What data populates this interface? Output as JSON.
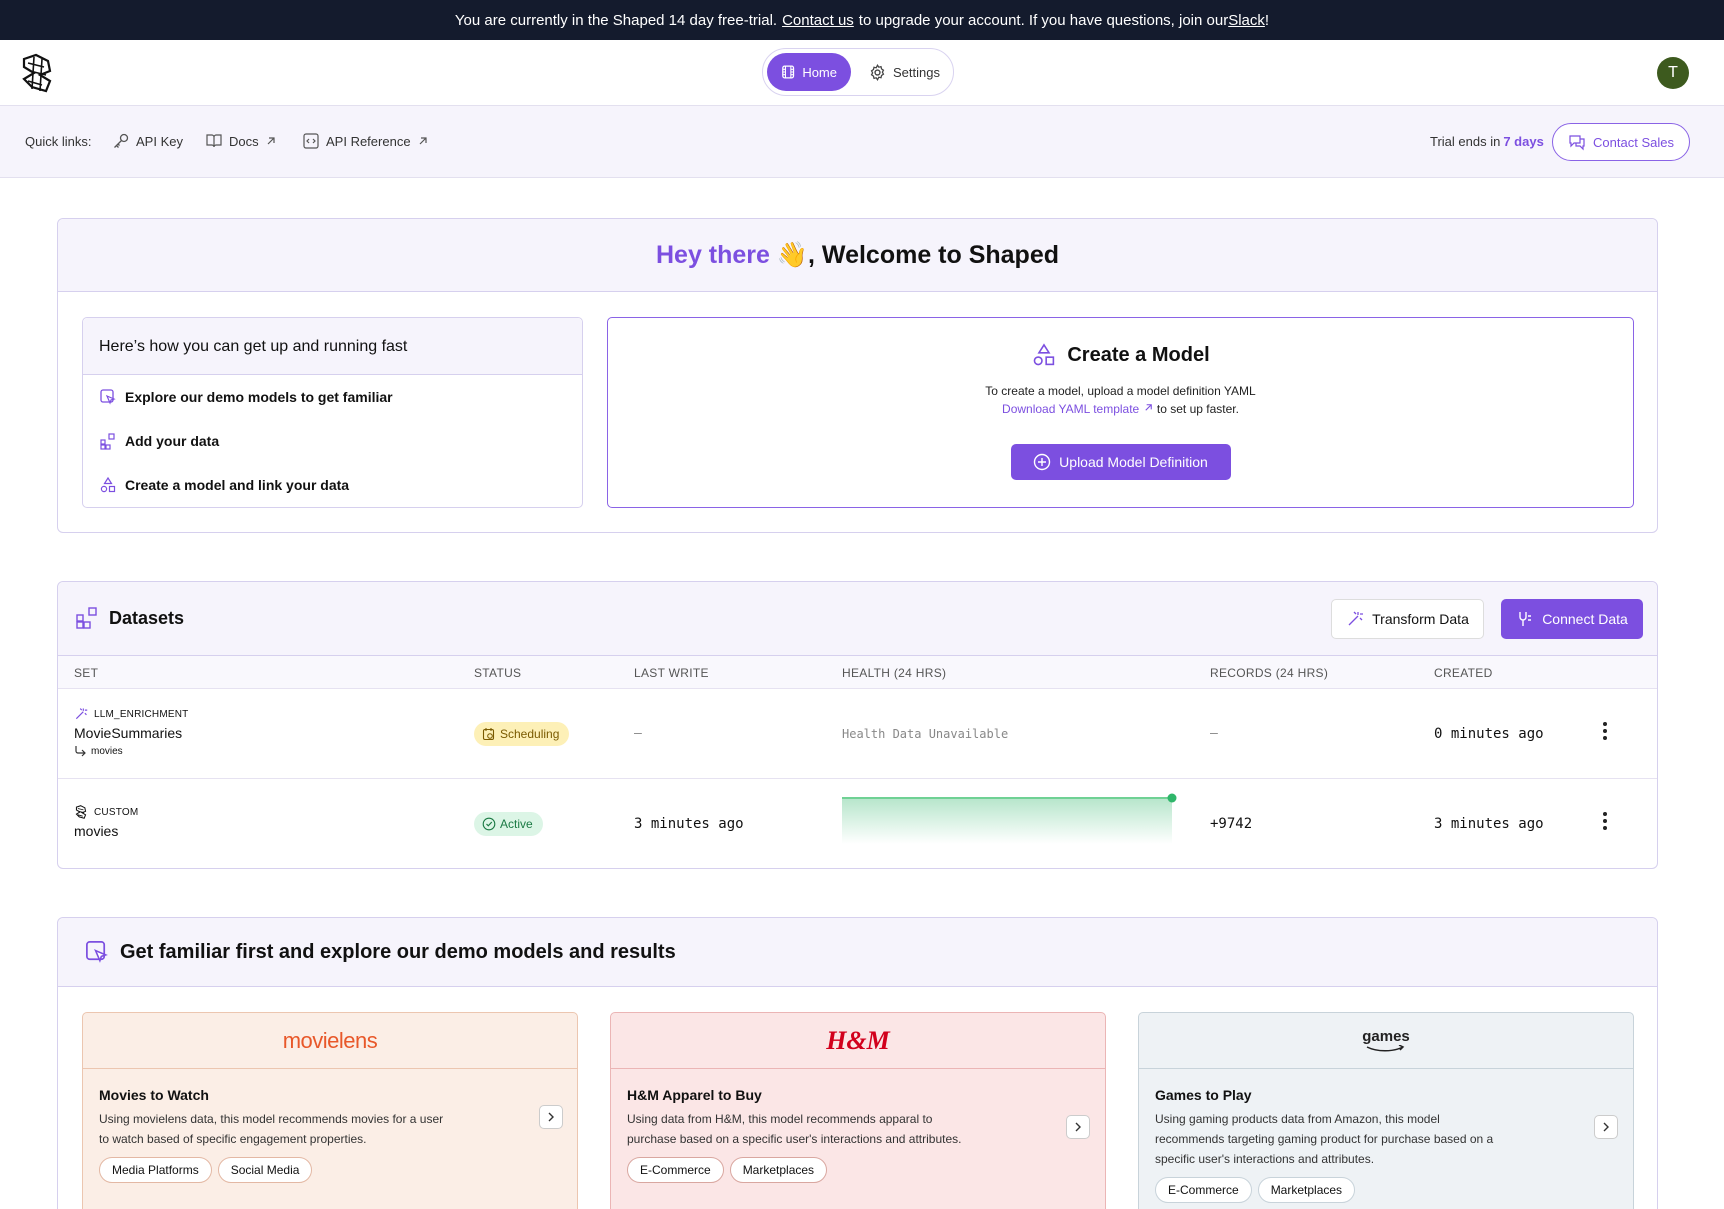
{
  "banner": {
    "text_before": "You are currently in the Shaped 14 day free-trial.",
    "contact_link": "Contact us",
    "text_middle": "to upgrade your account. If you have questions, join our",
    "slack_link": "Slack",
    "text_end": "!"
  },
  "nav": {
    "home_label": "Home",
    "settings_label": "Settings",
    "avatar_initial": "T"
  },
  "quicklinks": {
    "label": "Quick links:",
    "api_key": "API Key",
    "docs": "Docs",
    "api_reference": "API Reference",
    "trial_prefix": "Trial ends in",
    "trial_days": "7 days",
    "contact_sales": "Contact Sales"
  },
  "welcome": {
    "hey": "Hey there",
    "wave": "👋",
    "rest": ", Welcome to Shaped",
    "steps_title": "Here’s how you can get up and running fast",
    "steps": [
      "Explore our demo models to get familiar",
      "Add your data",
      "Create a model and link your data"
    ],
    "create_title": "Create a Model",
    "create_desc": "To create a model, upload a model definition YAML",
    "download_link": "Download YAML template",
    "download_suffix": "to set up faster.",
    "upload_button": "Upload Model Definition"
  },
  "datasets": {
    "title": "Datasets",
    "transform_button": "Transform Data",
    "connect_button": "Connect Data",
    "columns": [
      "SET",
      "STATUS",
      "LAST WRITE",
      "HEALTH (24 HRS)",
      "RECORDS (24 HRS)",
      "CREATED"
    ],
    "rows": [
      {
        "kind": "LLM_ENRICHMENT",
        "name": "MovieSummaries",
        "source": "movies",
        "status": "Scheduling",
        "last_write": "—",
        "health": "Health Data Unavailable",
        "records": "—",
        "created": "0 minutes ago"
      },
      {
        "kind": "CUSTOM",
        "name": "movies",
        "status": "Active",
        "last_write": "3 minutes ago",
        "health_level": 1.0,
        "records": "+9742",
        "created": "3 minutes ago"
      }
    ]
  },
  "demo": {
    "title": "Get familiar first and explore our demo models and results",
    "cards": [
      {
        "brand": "movielens",
        "title": "Movies to Watch",
        "desc": "Using movielens data, this model recommends movies for a user to watch based of specific engagement properties.",
        "tags": [
          "Media Platforms",
          "Social Media"
        ]
      },
      {
        "brand": "H&M",
        "title": "H&M Apparel to Buy",
        "desc": "Using data from H&M, this model recommends apparal to purchase based on a specific user's interactions and attributes.",
        "tags": [
          "E-Commerce",
          "Marketplaces"
        ]
      },
      {
        "brand": "games",
        "title": "Games to Play",
        "desc": "Using gaming products data from Amazon, this model recommends targeting gaming product for purchase based on a specific user's interactions and attributes.",
        "tags": [
          "E-Commerce",
          "Marketplaces"
        ]
      }
    ]
  },
  "colors": {
    "accent": "#7c4fe0",
    "banner_bg": "#141b2d",
    "active_green": "#2fb66a"
  }
}
